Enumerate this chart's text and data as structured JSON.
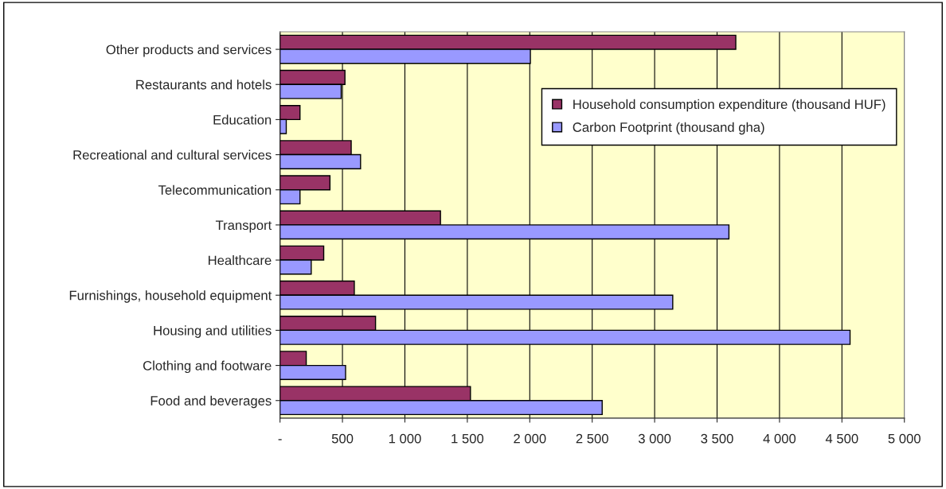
{
  "chart_data": {
    "type": "bar",
    "orientation": "horizontal",
    "categories": [
      "Other products and services",
      "Restaurants and hotels",
      "Education",
      "Recreational and cultural services",
      "Telecommunication",
      "Transport",
      "Healthcare",
      "Furnishings, household equipment",
      "Housing and utilities",
      "Clothing and footware",
      "Food and beverages"
    ],
    "series": [
      {
        "name": "Household consumption expenditure (thousand HUF)",
        "color": "#993366",
        "values": [
          3650,
          520,
          160,
          570,
          400,
          1285,
          350,
          595,
          765,
          210,
          1525
        ]
      },
      {
        "name": "Carbon Footprint (thousand gha)",
        "color": "#9999ff",
        "values": [
          2005,
          490,
          50,
          645,
          160,
          3595,
          250,
          3145,
          4565,
          525,
          2580
        ]
      }
    ],
    "xlim": [
      0,
      5000
    ],
    "xticks": [
      {
        "value": 0,
        "label": "-"
      },
      500,
      {
        "value": 1000,
        "label": "1 000"
      },
      {
        "value": 1500,
        "label": "1 500"
      },
      {
        "value": 2000,
        "label": "2 000"
      },
      {
        "value": 2500,
        "label": "2 500"
      },
      {
        "value": 3000,
        "label": "3 000"
      },
      {
        "value": 3500,
        "label": "3 500"
      },
      {
        "value": 4000,
        "label": "4 000"
      },
      {
        "value": 4500,
        "label": "4 500"
      },
      {
        "value": 5000,
        "label": "5 000"
      }
    ],
    "grid": "x",
    "legend": "top right"
  }
}
